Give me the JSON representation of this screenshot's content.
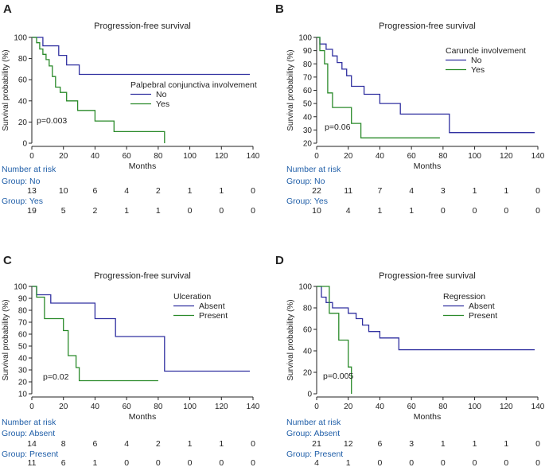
{
  "colors": {
    "no": "#3030a0",
    "yes": "#2a8a2a",
    "axis": "#222222",
    "risk_header": "#1f5ea8"
  },
  "chart_data": [
    {
      "panel": "A",
      "type": "line",
      "title": "Progression-free survival",
      "xlabel": "Months",
      "ylabel": "Survival probability (%)",
      "xlim": [
        0,
        140
      ],
      "ylim": [
        0,
        100
      ],
      "xticks": [
        0,
        20,
        40,
        60,
        80,
        100,
        120,
        140
      ],
      "yticks": [
        0,
        20,
        40,
        60,
        80,
        100
      ],
      "legend_title": "Palpebral conjunctiva involvement",
      "legend_position": "right-middle",
      "pvalue": "p=0.003",
      "series": [
        {
          "name": "No",
          "color_key": "no",
          "steps": [
            [
              0,
              100
            ],
            [
              7,
              100
            ],
            [
              7,
              92
            ],
            [
              17,
              92
            ],
            [
              17,
              83
            ],
            [
              22,
              83
            ],
            [
              22,
              74
            ],
            [
              30,
              74
            ],
            [
              30,
              65
            ],
            [
              138,
              65
            ]
          ]
        },
        {
          "name": "Yes",
          "color_key": "yes",
          "steps": [
            [
              0,
              100
            ],
            [
              3,
              100
            ],
            [
              3,
              95
            ],
            [
              5,
              95
            ],
            [
              5,
              89
            ],
            [
              7,
              89
            ],
            [
              7,
              84
            ],
            [
              9,
              84
            ],
            [
              9,
              79
            ],
            [
              11,
              79
            ],
            [
              11,
              73
            ],
            [
              13,
              73
            ],
            [
              13,
              63
            ],
            [
              15,
              63
            ],
            [
              15,
              53
            ],
            [
              18,
              53
            ],
            [
              18,
              48
            ],
            [
              22,
              48
            ],
            [
              22,
              40
            ],
            [
              29,
              40
            ],
            [
              29,
              31
            ],
            [
              40,
              31
            ],
            [
              40,
              21
            ],
            [
              52,
              21
            ],
            [
              52,
              11
            ],
            [
              84,
              11
            ],
            [
              84,
              0
            ]
          ]
        }
      ],
      "risk": {
        "header": "Number at risk",
        "groups": [
          {
            "label": "Group: No",
            "values": [
              "13",
              "10",
              "6",
              "4",
              "2",
              "1",
              "1",
              "0"
            ]
          },
          {
            "label": "Group: Yes",
            "values": [
              "19",
              "5",
              "2",
              "1",
              "1",
              "0",
              "0",
              "0"
            ]
          }
        ]
      }
    },
    {
      "panel": "B",
      "type": "line",
      "title": "Progression-free survival",
      "xlabel": "Months",
      "ylabel": "Survival probability (%)",
      "xlim": [
        0,
        140
      ],
      "ylim": [
        20,
        100
      ],
      "xticks": [
        0,
        20,
        40,
        60,
        80,
        100,
        120,
        140
      ],
      "yticks": [
        20,
        30,
        40,
        50,
        60,
        70,
        80,
        90,
        100
      ],
      "legend_title": "Caruncle involvement",
      "legend_position": "right-top",
      "pvalue": "p=0.06",
      "series": [
        {
          "name": "No",
          "color_key": "no",
          "steps": [
            [
              0,
              100
            ],
            [
              2,
              100
            ],
            [
              2,
              95
            ],
            [
              6,
              95
            ],
            [
              6,
              91
            ],
            [
              10,
              91
            ],
            [
              10,
              86
            ],
            [
              13,
              86
            ],
            [
              13,
              81
            ],
            [
              16,
              81
            ],
            [
              16,
              76
            ],
            [
              19,
              76
            ],
            [
              19,
              71
            ],
            [
              22,
              71
            ],
            [
              22,
              63
            ],
            [
              30,
              63
            ],
            [
              30,
              57
            ],
            [
              40,
              57
            ],
            [
              40,
              50
            ],
            [
              53,
              50
            ],
            [
              53,
              42
            ],
            [
              84,
              42
            ],
            [
              84,
              28
            ],
            [
              138,
              28
            ]
          ]
        },
        {
          "name": "Yes",
          "color_key": "yes",
          "steps": [
            [
              0,
              100
            ],
            [
              2,
              100
            ],
            [
              2,
              90
            ],
            [
              5,
              90
            ],
            [
              5,
              80
            ],
            [
              7,
              80
            ],
            [
              7,
              58
            ],
            [
              10,
              58
            ],
            [
              10,
              47
            ],
            [
              22,
              47
            ],
            [
              22,
              35
            ],
            [
              28,
              35
            ],
            [
              28,
              24
            ],
            [
              78,
              24
            ]
          ]
        }
      ],
      "risk": {
        "header": "Number at risk",
        "groups": [
          {
            "label": "Group: No",
            "values": [
              "22",
              "11",
              "7",
              "4",
              "3",
              "1",
              "1",
              "0"
            ]
          },
          {
            "label": "Group: Yes",
            "values": [
              "10",
              "4",
              "1",
              "1",
              "0",
              "0",
              "0",
              "0"
            ]
          }
        ]
      }
    },
    {
      "panel": "C",
      "type": "line",
      "title": "Progression-free survival",
      "xlabel": "Months",
      "ylabel": "Survival probability (%)",
      "xlim": [
        0,
        140
      ],
      "ylim": [
        10,
        100
      ],
      "xticks": [
        0,
        20,
        40,
        60,
        80,
        100,
        120,
        140
      ],
      "yticks": [
        10,
        20,
        30,
        40,
        50,
        60,
        70,
        80,
        90,
        100
      ],
      "legend_title": "Ulceration",
      "legend_position": "right-top",
      "pvalue": "p=0.02",
      "series": [
        {
          "name": "Absent",
          "color_key": "no",
          "steps": [
            [
              0,
              100
            ],
            [
              3,
              100
            ],
            [
              3,
              93
            ],
            [
              12,
              93
            ],
            [
              12,
              86
            ],
            [
              40,
              86
            ],
            [
              40,
              73
            ],
            [
              53,
              73
            ],
            [
              53,
              58
            ],
            [
              84,
              58
            ],
            [
              84,
              29
            ],
            [
              138,
              29
            ]
          ]
        },
        {
          "name": "Present",
          "color_key": "yes",
          "steps": [
            [
              0,
              100
            ],
            [
              3,
              100
            ],
            [
              3,
              91
            ],
            [
              8,
              91
            ],
            [
              8,
              73
            ],
            [
              20,
              73
            ],
            [
              20,
              63
            ],
            [
              23,
              63
            ],
            [
              23,
              42
            ],
            [
              28,
              42
            ],
            [
              28,
              32
            ],
            [
              30,
              32
            ],
            [
              30,
              21
            ],
            [
              80,
              21
            ]
          ]
        }
      ],
      "risk": {
        "header": "Number at risk",
        "groups": [
          {
            "label": "Group: Absent",
            "values": [
              "14",
              "8",
              "6",
              "4",
              "2",
              "1",
              "1",
              "0"
            ]
          },
          {
            "label": "Group: Present",
            "values": [
              "11",
              "6",
              "1",
              "0",
              "0",
              "0",
              "0",
              "0"
            ]
          }
        ]
      }
    },
    {
      "panel": "D",
      "type": "line",
      "title": "Progression-free survival",
      "xlabel": "Months",
      "ylabel": "Survival probability (%)",
      "xlim": [
        0,
        140
      ],
      "ylim": [
        0,
        100
      ],
      "xticks": [
        0,
        20,
        40,
        60,
        80,
        100,
        120,
        140
      ],
      "yticks": [
        0,
        20,
        40,
        60,
        80,
        100
      ],
      "legend_title": "Regression",
      "legend_position": "right-top",
      "pvalue": "p=0.005",
      "series": [
        {
          "name": "Absent",
          "color_key": "no",
          "steps": [
            [
              0,
              100
            ],
            [
              3,
              100
            ],
            [
              3,
              90
            ],
            [
              6,
              90
            ],
            [
              6,
              85
            ],
            [
              10,
              85
            ],
            [
              10,
              80
            ],
            [
              20,
              80
            ],
            [
              20,
              75
            ],
            [
              25,
              75
            ],
            [
              25,
              70
            ],
            [
              29,
              70
            ],
            [
              29,
              64
            ],
            [
              33,
              64
            ],
            [
              33,
              58
            ],
            [
              40,
              58
            ],
            [
              40,
              52
            ],
            [
              52,
              52
            ],
            [
              52,
              41
            ],
            [
              138,
              41
            ]
          ]
        },
        {
          "name": "Present",
          "color_key": "yes",
          "steps": [
            [
              0,
              100
            ],
            [
              8,
              100
            ],
            [
              8,
              75
            ],
            [
              14,
              75
            ],
            [
              14,
              50
            ],
            [
              20,
              50
            ],
            [
              20,
              25
            ],
            [
              22,
              25
            ],
            [
              22,
              0
            ]
          ]
        }
      ],
      "risk": {
        "header": "Number at risk",
        "groups": [
          {
            "label": "Group: Absent",
            "values": [
              "21",
              "12",
              "6",
              "3",
              "1",
              "1",
              "1",
              "0"
            ]
          },
          {
            "label": "Group: Present",
            "values": [
              "4",
              "1",
              "0",
              "0",
              "0",
              "0",
              "0",
              "0"
            ]
          }
        ]
      }
    }
  ]
}
